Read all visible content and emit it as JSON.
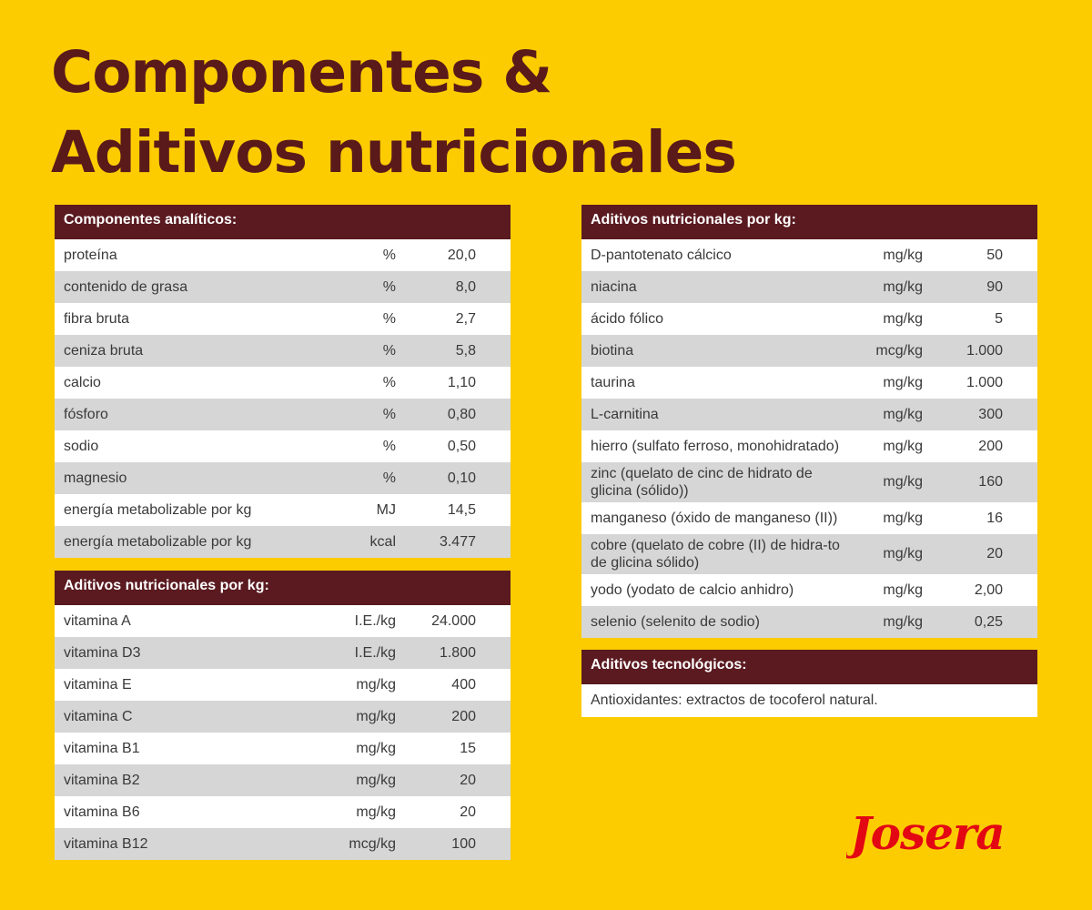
{
  "title": {
    "line1": "Componentes &",
    "line2": "Aditivos nutricionales"
  },
  "analytic": {
    "heading": "Componentes analíticos:",
    "rows": [
      {
        "name": "proteína",
        "unit": "%",
        "value": "20,0"
      },
      {
        "name": "contenido de grasa",
        "unit": "%",
        "value": "8,0"
      },
      {
        "name": "fibra bruta",
        "unit": "%",
        "value": "2,7"
      },
      {
        "name": "ceniza bruta",
        "unit": "%",
        "value": "5,8"
      },
      {
        "name": "calcio",
        "unit": "%",
        "value": "1,10"
      },
      {
        "name": "fósforo",
        "unit": "%",
        "value": "0,80"
      },
      {
        "name": "sodio",
        "unit": "%",
        "value": "0,50"
      },
      {
        "name": "magnesio",
        "unit": "%",
        "value": "0,10"
      },
      {
        "name": "energía metabolizable por kg",
        "unit": "MJ",
        "value": "14,5"
      },
      {
        "name": "energía metabolizable por kg",
        "unit": "kcal",
        "value": "3.477"
      }
    ]
  },
  "vitamins": {
    "heading": "Aditivos nutricionales por kg:",
    "rows": [
      {
        "name": "vitamina A",
        "unit": "I.E./kg",
        "value": "24.000"
      },
      {
        "name": "vitamina D3",
        "unit": "I.E./kg",
        "value": "1.800"
      },
      {
        "name": "vitamina E",
        "unit": "mg/kg",
        "value": "400"
      },
      {
        "name": "vitamina C",
        "unit": "mg/kg",
        "value": "200"
      },
      {
        "name": "vitamina B1",
        "unit": "mg/kg",
        "value": "15"
      },
      {
        "name": "vitamina B2",
        "unit": "mg/kg",
        "value": "20"
      },
      {
        "name": "vitamina B6",
        "unit": "mg/kg",
        "value": "20"
      },
      {
        "name": "vitamina B12",
        "unit": "mcg/kg",
        "value": "100"
      }
    ]
  },
  "additives": {
    "heading": "Aditivos nutricionales por kg:",
    "rows": [
      {
        "name": "D-pantotenato cálcico",
        "unit": "mg/kg",
        "value": "50"
      },
      {
        "name": "niacina",
        "unit": "mg/kg",
        "value": "90"
      },
      {
        "name": "ácido fólico",
        "unit": "mg/kg",
        "value": "5"
      },
      {
        "name": "biotina",
        "unit": "mcg/kg",
        "value": "1.000"
      },
      {
        "name": "taurina",
        "unit": "mg/kg",
        "value": "1.000"
      },
      {
        "name": "L-carnitina",
        "unit": "mg/kg",
        "value": "300"
      },
      {
        "name": "hierro (sulfato ferroso, monohidratado)",
        "unit": "mg/kg",
        "value": "200"
      },
      {
        "name": "zinc (quelato de cinc de hidrato de glicina (sólido))",
        "unit": "mg/kg",
        "value": "160"
      },
      {
        "name": "manganeso (óxido de manganeso (II))",
        "unit": "mg/kg",
        "value": "16"
      },
      {
        "name": "cobre (quelato de cobre (II) de hidra-to de glicina sólido)",
        "unit": "mg/kg",
        "value": "20"
      },
      {
        "name": "yodo (yodato de calcio anhidro)",
        "unit": "mg/kg",
        "value": "2,00"
      },
      {
        "name": "selenio (selenito de sodio)",
        "unit": "mg/kg",
        "value": "0,25"
      }
    ]
  },
  "technological": {
    "heading": "Aditivos tecnológicos:",
    "text": "Antioxidantes: extractos de tocoferol natural."
  },
  "brand": {
    "logo_text": "Josera",
    "color": "#e30613"
  }
}
